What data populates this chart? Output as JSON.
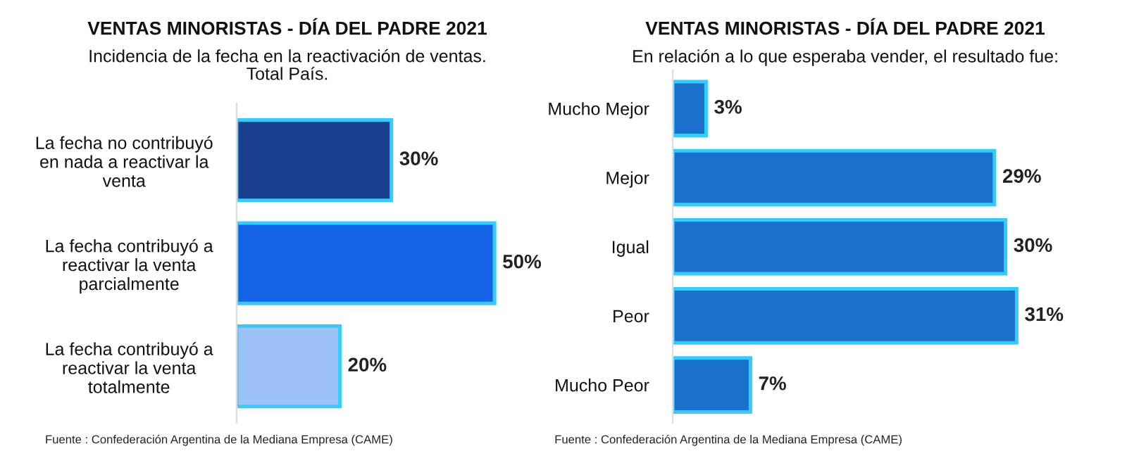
{
  "chart_data": [
    {
      "type": "bar",
      "orientation": "horizontal",
      "title": "VENTAS MINORISTAS - DÍA DEL PADRE 2021",
      "subtitle": "Incidencia de la fecha en la reactivación de ventas.\nTotal País.",
      "categories": [
        "La fecha no contribuyó\nen nada a reactivar la\nventa",
        "La fecha contribuyó a\nreactivar la venta\nparcialmente",
        "La fecha contribuyó a\nreactivar la venta\ntotalmente"
      ],
      "values": [
        30,
        50,
        20
      ],
      "colors": [
        "#1a3f8f",
        "#1462e6",
        "#9cc2f7"
      ],
      "value_labels": [
        "30%",
        "50%",
        "20%"
      ],
      "annotations": [
        "Fuente : Confederación Argentina de la Mediana Empresa (CAME)"
      ],
      "grid": false,
      "legend": false
    },
    {
      "type": "bar",
      "orientation": "horizontal",
      "title": "VENTAS MINORISTAS - DÍA DEL PADRE 2021",
      "subtitle": "En relación a lo que esperaba vender, el resultado fue:",
      "categories": [
        "Mucho Mejor",
        "Mejor",
        "Igual",
        "Peor",
        "Mucho Peor"
      ],
      "values": [
        3,
        29,
        30,
        31,
        7
      ],
      "color": "#1a70cc",
      "value_labels": [
        "3%",
        "29%",
        "30%",
        "31%",
        "7%"
      ],
      "annotations": [
        "Fuente : Confederación Argentina de la Mediana Empresa (CAME)"
      ],
      "grid": false,
      "legend": false
    }
  ]
}
